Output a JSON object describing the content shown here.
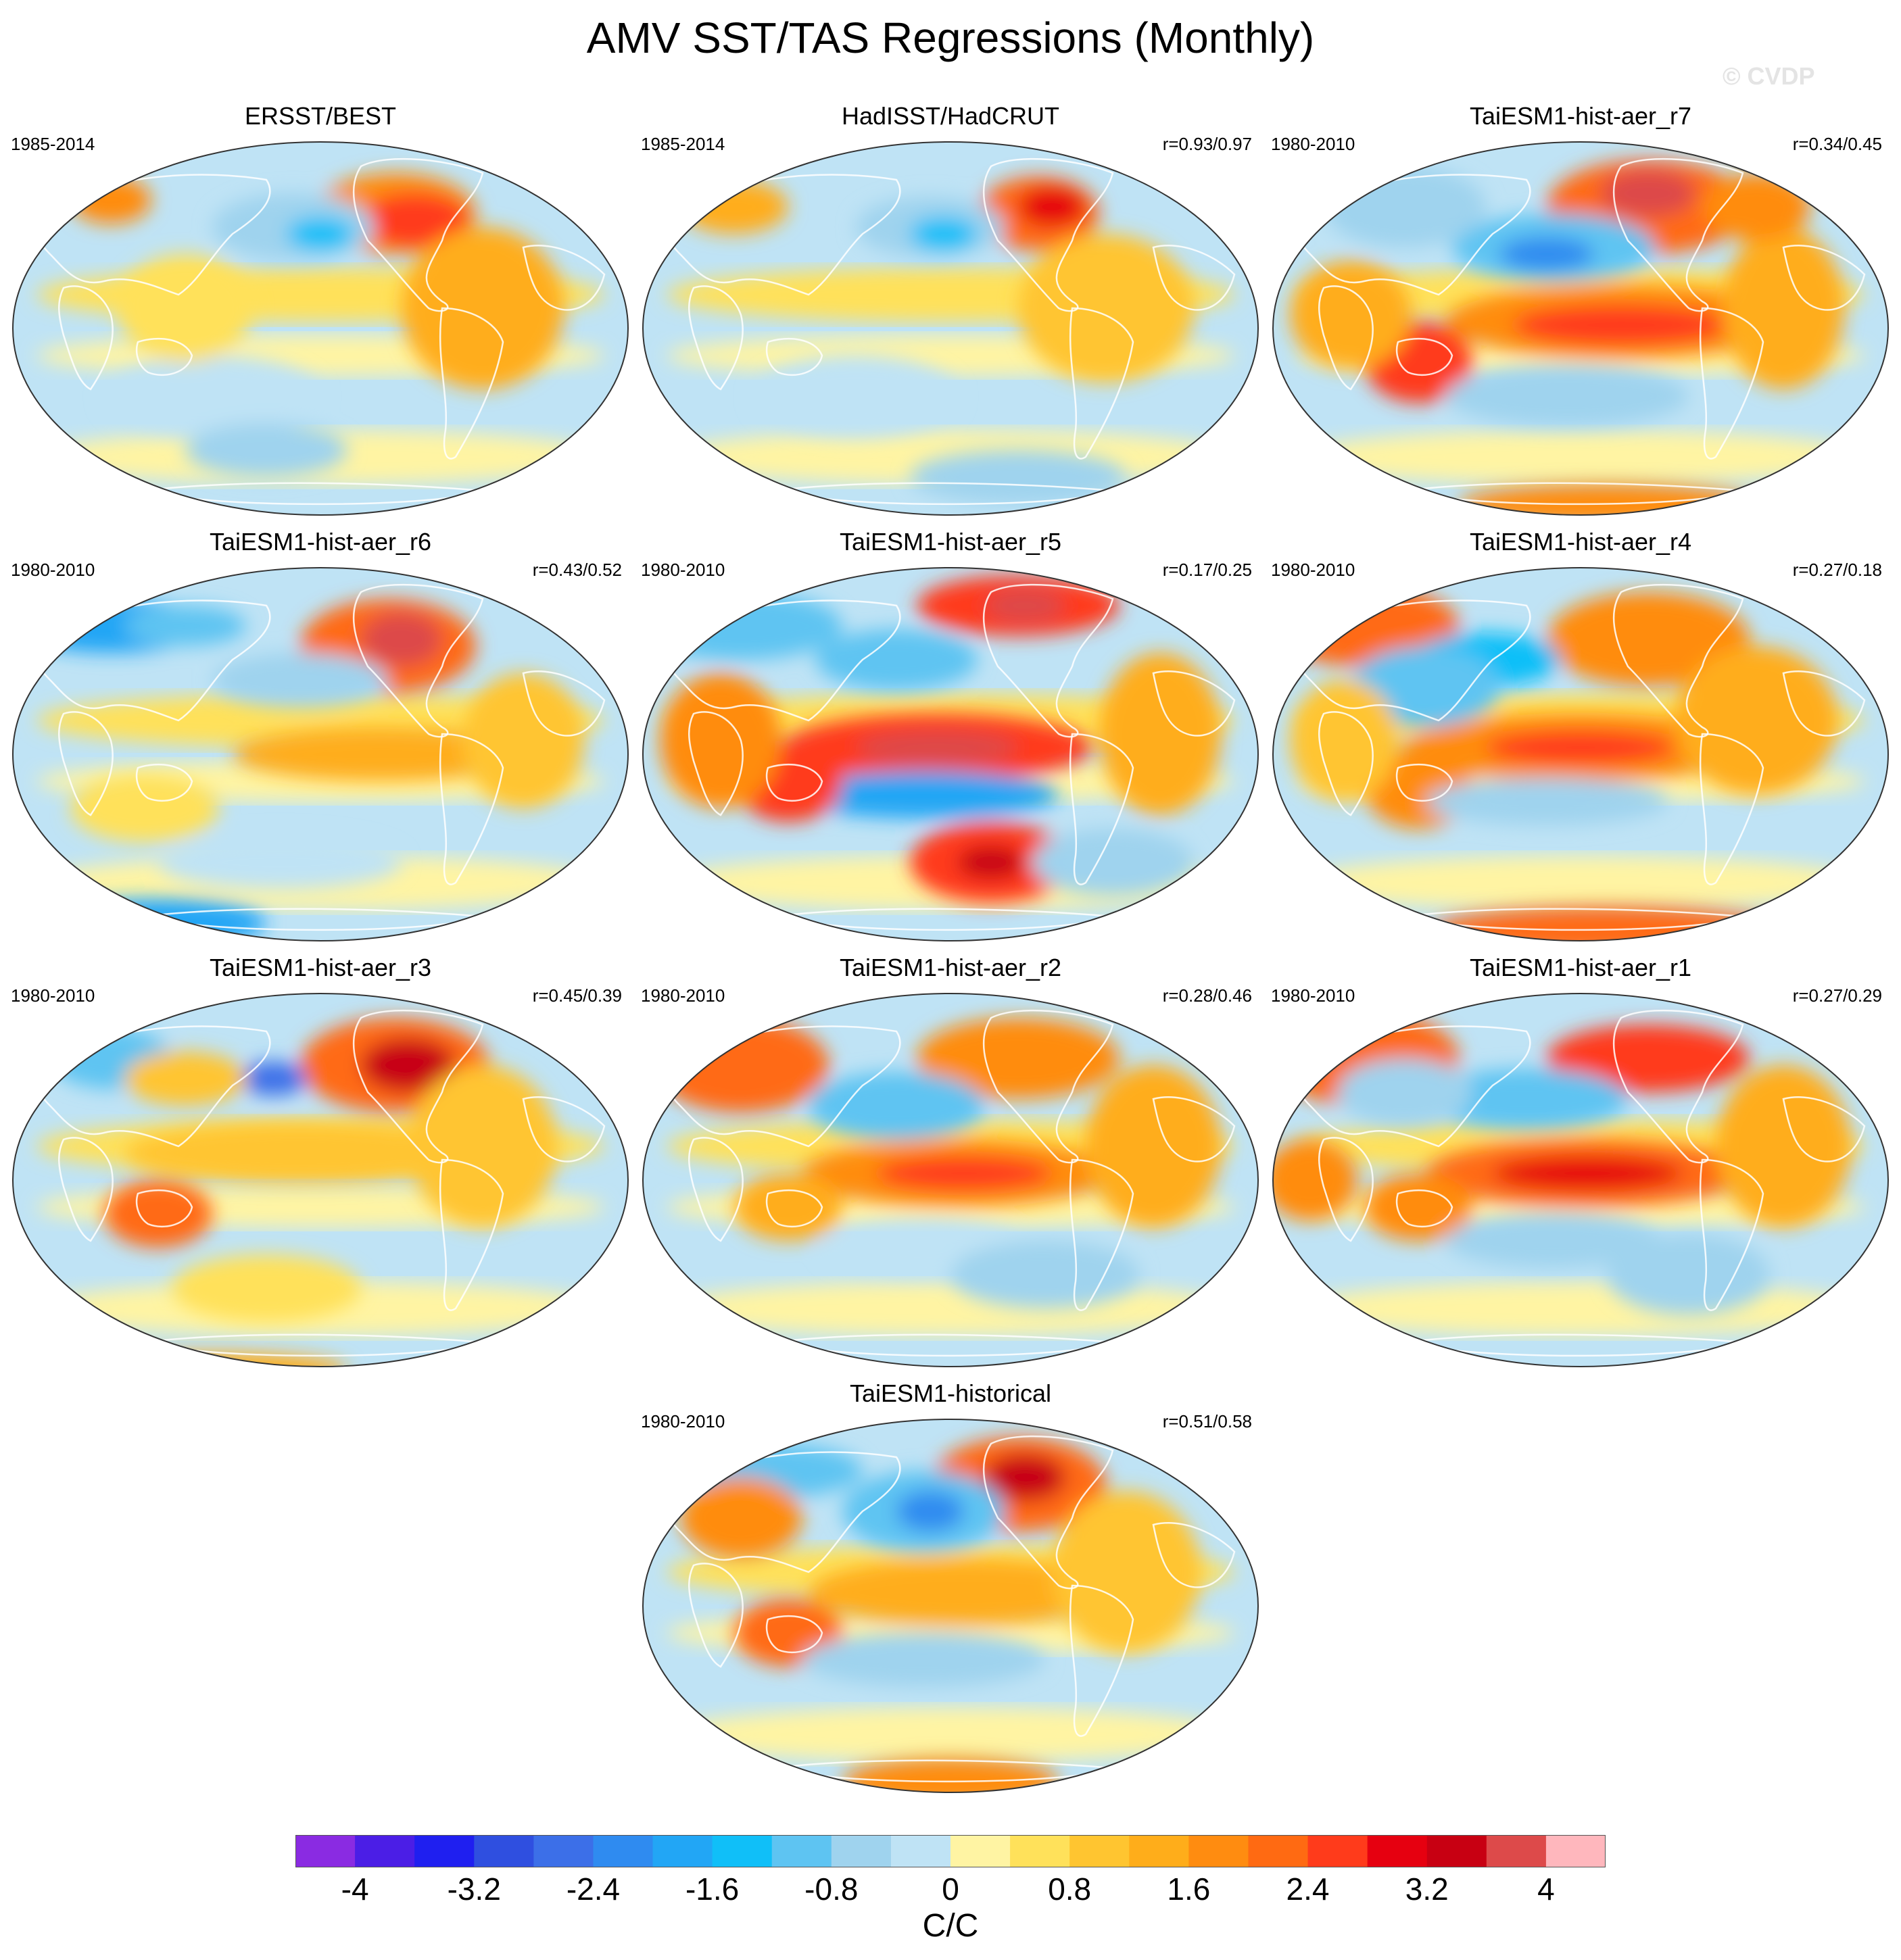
{
  "title": "AMV SST/TAS Regressions (Monthly)",
  "watermark": "© CVDP",
  "chart_data": {
    "type": "heatmap",
    "title": "AMV SST/TAS Regressions (Monthly)",
    "projection": "global map panels",
    "panels": [
      {
        "title": "ERSST/BEST",
        "period": "1985-2014",
        "corr": ""
      },
      {
        "title": "HadISST/HadCRUT",
        "period": "1985-2014",
        "corr": "r=0.93/0.97"
      },
      {
        "title": "TaiESM1-hist-aer_r7",
        "period": "1980-2010",
        "corr": "r=0.34/0.45"
      },
      {
        "title": "TaiESM1-hist-aer_r6",
        "period": "1980-2010",
        "corr": "r=0.43/0.52"
      },
      {
        "title": "TaiESM1-hist-aer_r5",
        "period": "1980-2010",
        "corr": "r=0.17/0.25"
      },
      {
        "title": "TaiESM1-hist-aer_r4",
        "period": "1980-2010",
        "corr": "r=0.27/0.18"
      },
      {
        "title": "TaiESM1-hist-aer_r3",
        "period": "1980-2010",
        "corr": "r=0.45/0.39"
      },
      {
        "title": "TaiESM1-hist-aer_r2",
        "period": "1980-2010",
        "corr": "r=0.28/0.46"
      },
      {
        "title": "TaiESM1-hist-aer_r1",
        "period": "1980-2010",
        "corr": "r=0.27/0.29"
      },
      {
        "title": "TaiESM1-historical",
        "period": "1980-2010",
        "corr": "r=0.51/0.58"
      }
    ],
    "colorbar": {
      "units": "C/C",
      "tick_labels": [
        "-4",
        "-3.2",
        "-2.4",
        "-1.6",
        "-0.8",
        "0",
        "0.8",
        "1.6",
        "2.4",
        "3.2",
        "4"
      ],
      "tick_values": [
        -4,
        -3.2,
        -2.4,
        -1.6,
        -0.8,
        0,
        0.8,
        1.6,
        2.4,
        3.2,
        4
      ],
      "colors": [
        "#8a2be2",
        "#4b1ee6",
        "#1f1ff0",
        "#2f4fe0",
        "#3c6fe8",
        "#2f8bf0",
        "#22a6f5",
        "#10bff8",
        "#5ec4f2",
        "#9fd3ee",
        "#bfe3f5",
        "#fff4a3",
        "#ffe15a",
        "#ffc530",
        "#ffad1a",
        "#ff8c10",
        "#ff6a12",
        "#ff3b1b",
        "#e60010",
        "#c80012",
        "#dd4a4a",
        "#ffb7bd"
      ]
    }
  }
}
